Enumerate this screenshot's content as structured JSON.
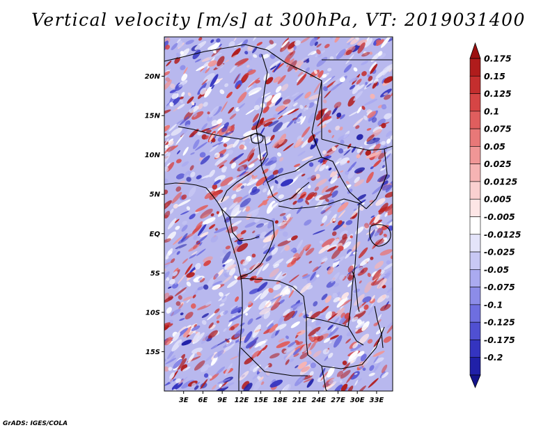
{
  "title": "Vertical velocity [m/s] at 300hPa, VT: 2019031400",
  "credit": "GrADS: IGES/COLA",
  "map": {
    "lon_range": [
      0,
      35.5
    ],
    "lat_range": [
      -20,
      25
    ],
    "y_ticks": [
      {
        "value": 20,
        "label": "20N"
      },
      {
        "value": 15,
        "label": "15N"
      },
      {
        "value": 10,
        "label": "10N"
      },
      {
        "value": 5,
        "label": "5N"
      },
      {
        "value": 0,
        "label": "EQ"
      },
      {
        "value": -5,
        "label": "5S"
      },
      {
        "value": -10,
        "label": "10S"
      },
      {
        "value": -15,
        "label": "15S"
      }
    ],
    "x_ticks": [
      {
        "value": 3,
        "label": "3E"
      },
      {
        "value": 6,
        "label": "6E"
      },
      {
        "value": 9,
        "label": "9E"
      },
      {
        "value": 12,
        "label": "12E"
      },
      {
        "value": 15,
        "label": "15E"
      },
      {
        "value": 18,
        "label": "18E"
      },
      {
        "value": 21,
        "label": "21E"
      },
      {
        "value": 24,
        "label": "24E"
      },
      {
        "value": 27,
        "label": "27E"
      },
      {
        "value": 30,
        "label": "30E"
      },
      {
        "value": 33,
        "label": "33E"
      }
    ]
  },
  "colorbar": {
    "levels": [
      {
        "label": "0.175",
        "color": "#b01c1c"
      },
      {
        "label": "0.15",
        "color": "#c42e2e"
      },
      {
        "label": "0.125",
        "color": "#d64545"
      },
      {
        "label": "0.1",
        "color": "#e05e5e"
      },
      {
        "label": "0.075",
        "color": "#e87878"
      },
      {
        "label": "0.05",
        "color": "#f09696"
      },
      {
        "label": "0.025",
        "color": "#f6b4b4"
      },
      {
        "label": "0.0125",
        "color": "#fad0d0"
      },
      {
        "label": "0.005",
        "color": "#fde6e6"
      },
      {
        "label": "-0.005",
        "color": "#ffffff"
      },
      {
        "label": "-0.0125",
        "color": "#e4e4fa"
      },
      {
        "label": "-0.025",
        "color": "#c8c8f4"
      },
      {
        "label": "-0.05",
        "color": "#aaaaf0"
      },
      {
        "label": "-0.075",
        "color": "#8c8ce8"
      },
      {
        "label": "-0.1",
        "color": "#6e6ee0"
      },
      {
        "label": "-0.125",
        "color": "#5050d2"
      },
      {
        "label": "-0.175",
        "color": "#3434c0"
      },
      {
        "label": "-0.2",
        "color": "#2020a8"
      }
    ],
    "top_cap_color": "#9c1010",
    "bottom_cap_color": "#14148c"
  }
}
